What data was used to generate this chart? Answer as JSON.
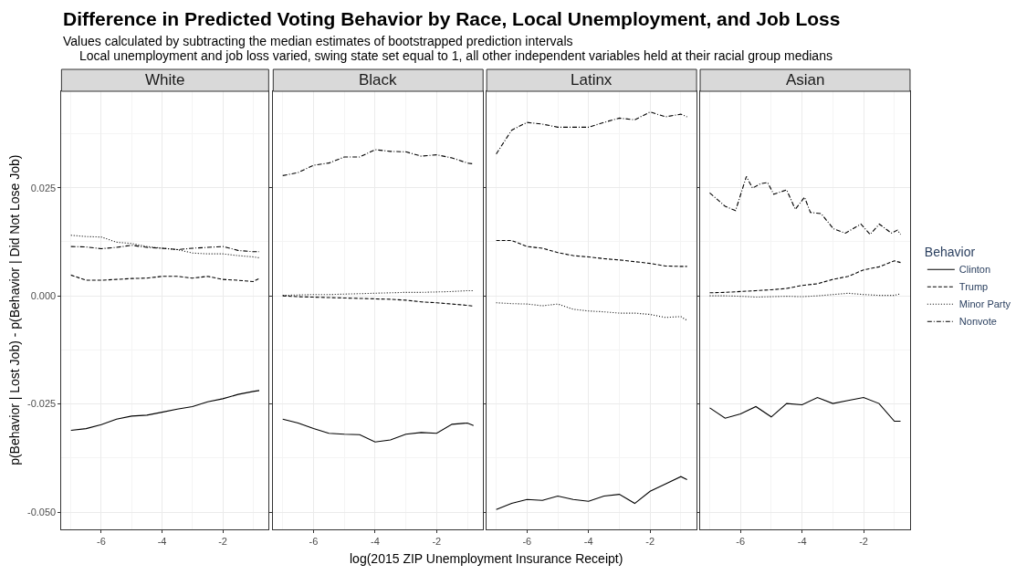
{
  "chart_data": [
    {
      "type": "line",
      "title": "White",
      "legend": "right",
      "legend_title": "Behavior",
      "annotations": [
        "Difference in Predicted Voting Behavior by Race, Local Unemployment, and Job Loss",
        "Values calculated by subtracting the median estimates of bootstrapped prediction intervals",
        "Local unemployment and job loss varied, swing state set equal to 1, all other independent variables held at their racial group medians",
        "log(2015 ZIP Unemployment Insurance Receipt)"
      ],
      "ylabel": "p(Behavior | Lost Job) - p(Behavior | Did Not Lose Job)",
      "x": [
        -7,
        -6.5,
        -6,
        -5.5,
        -5,
        -4.5,
        -4,
        -3.5,
        -3,
        -2.5,
        -2,
        -1.5,
        -1,
        -0.8
      ],
      "xlim": [
        -7.31,
        -0.49
      ],
      "xticks": [
        -6,
        -4,
        -2
      ],
      "ylim": [
        -0.054,
        0.0473
      ],
      "yticks": [
        {
          "value": -0.05,
          "label": "-0.050"
        },
        {
          "value": -0.025,
          "label": "-0.025"
        },
        {
          "value": 0,
          "label": "0.000"
        },
        {
          "value": 0.025,
          "label": "0.025"
        }
      ],
      "grid": true,
      "series": [
        {
          "name": "Clinton",
          "color": "#000000",
          "line_style": "solid",
          "values": [
            -0.0311,
            -0.0307,
            -0.0298,
            -0.0285,
            -0.0278,
            -0.0276,
            -0.0269,
            -0.0262,
            -0.0256,
            -0.0245,
            -0.0238,
            -0.0228,
            -0.0221,
            -0.0219
          ]
        },
        {
          "name": "Trump",
          "color": "#000000",
          "line_style": "dashed",
          "values": [
            0.0048,
            0.0036,
            0.0036,
            0.0038,
            0.004,
            0.0041,
            0.0045,
            0.0045,
            0.0041,
            0.0045,
            0.0038,
            0.0036,
            0.0033,
            0.004
          ]
        },
        {
          "name": "Minor Party",
          "color": "#000000",
          "line_style": "dotted",
          "values": [
            0.014,
            0.0137,
            0.0136,
            0.0124,
            0.0121,
            0.0114,
            0.011,
            0.0107,
            0.0099,
            0.0097,
            0.0097,
            0.0093,
            0.009,
            0.0088
          ]
        },
        {
          "name": "Nonvote",
          "color": "#000000",
          "line_style": "dashdot",
          "values": [
            0.0114,
            0.0113,
            0.0109,
            0.0112,
            0.0117,
            0.0112,
            0.011,
            0.0107,
            0.011,
            0.0112,
            0.0114,
            0.0105,
            0.0102,
            0.0102
          ]
        }
      ]
    },
    {
      "type": "line",
      "title": "Black",
      "tick_labels": "x",
      "x": [
        -7,
        -6.5,
        -6,
        -5.5,
        -5,
        -4.5,
        -4,
        -3.5,
        -3,
        -2.5,
        -2,
        -1.5,
        -1,
        -0.8
      ],
      "xlim": [
        -7.31,
        -0.49
      ],
      "xticks": [
        -6,
        -4,
        -2
      ],
      "ylim": [
        -0.054,
        0.0473
      ],
      "yticks": [
        {
          "value": -0.05,
          "label": null
        },
        {
          "value": -0.025,
          "label": null
        },
        {
          "value": 0,
          "label": null
        },
        {
          "value": 0.025,
          "label": null
        }
      ],
      "grid": true,
      "series": [
        {
          "name": "Clinton",
          "color": "#000000",
          "line_style": "solid",
          "values": [
            -0.0285,
            -0.0294,
            -0.0307,
            -0.0318,
            -0.032,
            -0.0321,
            -0.0338,
            -0.0333,
            -0.032,
            -0.0316,
            -0.0318,
            -0.0297,
            -0.0294,
            -0.03
          ]
        },
        {
          "name": "Trump",
          "color": "#000000",
          "line_style": "dashed",
          "values": [
            0.0,
            -0.0002,
            -0.0003,
            -0.0004,
            -0.0005,
            -0.0006,
            -0.0007,
            -0.0008,
            -0.001,
            -0.0014,
            -0.0016,
            -0.0019,
            -0.0022,
            -0.0024
          ]
        },
        {
          "name": "Minor Party",
          "color": "#000000",
          "line_style": "dotted",
          "values": [
            0.0001,
            0.0002,
            0.0003,
            0.0003,
            0.0004,
            0.0005,
            0.0006,
            0.0007,
            0.0008,
            0.0008,
            0.0009,
            0.001,
            0.0012,
            0.0012
          ]
        },
        {
          "name": "Nonvote",
          "color": "#000000",
          "line_style": "dashdot",
          "values": [
            0.0278,
            0.0285,
            0.0302,
            0.0307,
            0.0321,
            0.0321,
            0.0338,
            0.0334,
            0.0333,
            0.0323,
            0.0326,
            0.0319,
            0.0307,
            0.0305
          ]
        }
      ]
    },
    {
      "type": "line",
      "title": "Latinx",
      "tick_labels": "x",
      "x": [
        -7,
        -6.5,
        -6,
        -5.5,
        -5,
        -4.5,
        -4,
        -3.5,
        -3,
        -2.5,
        -2,
        -1.5,
        -1,
        -0.8
      ],
      "xlim": [
        -7.31,
        -0.49
      ],
      "xticks": [
        -6,
        -4,
        -2
      ],
      "ylim": [
        -0.054,
        0.0473
      ],
      "yticks": [
        {
          "value": -0.05,
          "label": null
        },
        {
          "value": -0.025,
          "label": null
        },
        {
          "value": 0,
          "label": null
        },
        {
          "value": 0.025,
          "label": null
        }
      ],
      "grid": true,
      "series": [
        {
          "name": "Clinton",
          "color": "#000000",
          "line_style": "solid",
          "values": [
            -0.0494,
            -0.048,
            -0.0471,
            -0.0473,
            -0.0463,
            -0.0471,
            -0.0475,
            -0.0463,
            -0.0459,
            -0.048,
            -0.0452,
            -0.0435,
            -0.0418,
            -0.0425
          ]
        },
        {
          "name": "Trump",
          "color": "#000000",
          "line_style": "dashed",
          "values": [
            0.0128,
            0.0128,
            0.0114,
            0.011,
            0.01,
            0.0093,
            0.009,
            0.0086,
            0.0083,
            0.0079,
            0.0075,
            0.0069,
            0.0068,
            0.0068
          ]
        },
        {
          "name": "Minor Party",
          "color": "#000000",
          "line_style": "dotted",
          "values": [
            -0.0016,
            -0.0018,
            -0.0019,
            -0.0023,
            -0.0019,
            -0.0031,
            -0.0035,
            -0.0037,
            -0.004,
            -0.004,
            -0.0043,
            -0.005,
            -0.0048,
            -0.0057
          ]
        },
        {
          "name": "Nonvote",
          "color": "#000000",
          "line_style": "dashdot",
          "values": [
            0.0328,
            0.0383,
            0.0401,
            0.0397,
            0.039,
            0.039,
            0.039,
            0.0401,
            0.0411,
            0.0407,
            0.0425,
            0.0414,
            0.042,
            0.0414
          ]
        }
      ]
    },
    {
      "type": "line",
      "title": "Asian",
      "tick_labels": "x",
      "x": [
        -7,
        -6.5,
        -6,
        -5.5,
        -5,
        -4.5,
        -4,
        -3.5,
        -3,
        -2.5,
        -2,
        -1.5,
        -1,
        -0.8
      ],
      "xlim": [
        -7.31,
        -0.49
      ],
      "xticks": [
        -6,
        -4,
        -2
      ],
      "ylim": [
        -0.054,
        0.0473
      ],
      "yticks": [
        {
          "value": -0.05,
          "label": null
        },
        {
          "value": -0.025,
          "label": null
        },
        {
          "value": 0,
          "label": null
        },
        {
          "value": 0.025,
          "label": null
        }
      ],
      "grid": true,
      "series": [
        {
          "name": "Clinton",
          "color": "#000000",
          "line_style": "solid",
          "values": [
            -0.0259,
            -0.0283,
            -0.0273,
            -0.0256,
            -0.028,
            -0.0249,
            -0.0252,
            -0.0235,
            -0.0249,
            -0.0242,
            -0.0235,
            -0.0249,
            -0.029,
            -0.029
          ]
        },
        {
          "name": "Trump",
          "color": "#000000",
          "line_style": "dashed",
          "values": [
            0.0007,
            0.0008,
            0.001,
            0.0012,
            0.0014,
            0.0017,
            0.0024,
            0.0028,
            0.0038,
            0.0045,
            0.006,
            0.0067,
            0.0081,
            0.0077
          ]
        },
        {
          "name": "Minor Party",
          "color": "#000000",
          "line_style": "dotted",
          "values": [
            0.0,
            0.0,
            -0.0001,
            -0.0003,
            -0.0002,
            -0.0001,
            -0.0002,
            0.0,
            0.0003,
            0.0006,
            0.0003,
            0.0001,
            0.0001,
            0.0005
          ]
        },
        {
          "name": "Nonvote",
          "color": "#000000",
          "line_style": "dashdot",
          "x": [
            -7,
            -6.5,
            -6.16,
            -5.81,
            -5.61,
            -5.36,
            -5.12,
            -4.92,
            -4.5,
            -4.22,
            -3.92,
            -3.73,
            -3.38,
            -2.98,
            -2.59,
            -2.09,
            -1.79,
            -1.49,
            -1.1,
            -0.9,
            -0.8
          ],
          "values": [
            0.0238,
            0.0207,
            0.0197,
            0.0276,
            0.0249,
            0.0259,
            0.0262,
            0.0235,
            0.0245,
            0.02,
            0.0228,
            0.0193,
            0.019,
            0.0155,
            0.0145,
            0.0166,
            0.0142,
            0.0166,
            0.0145,
            0.0152,
            0.0142
          ]
        }
      ]
    }
  ]
}
